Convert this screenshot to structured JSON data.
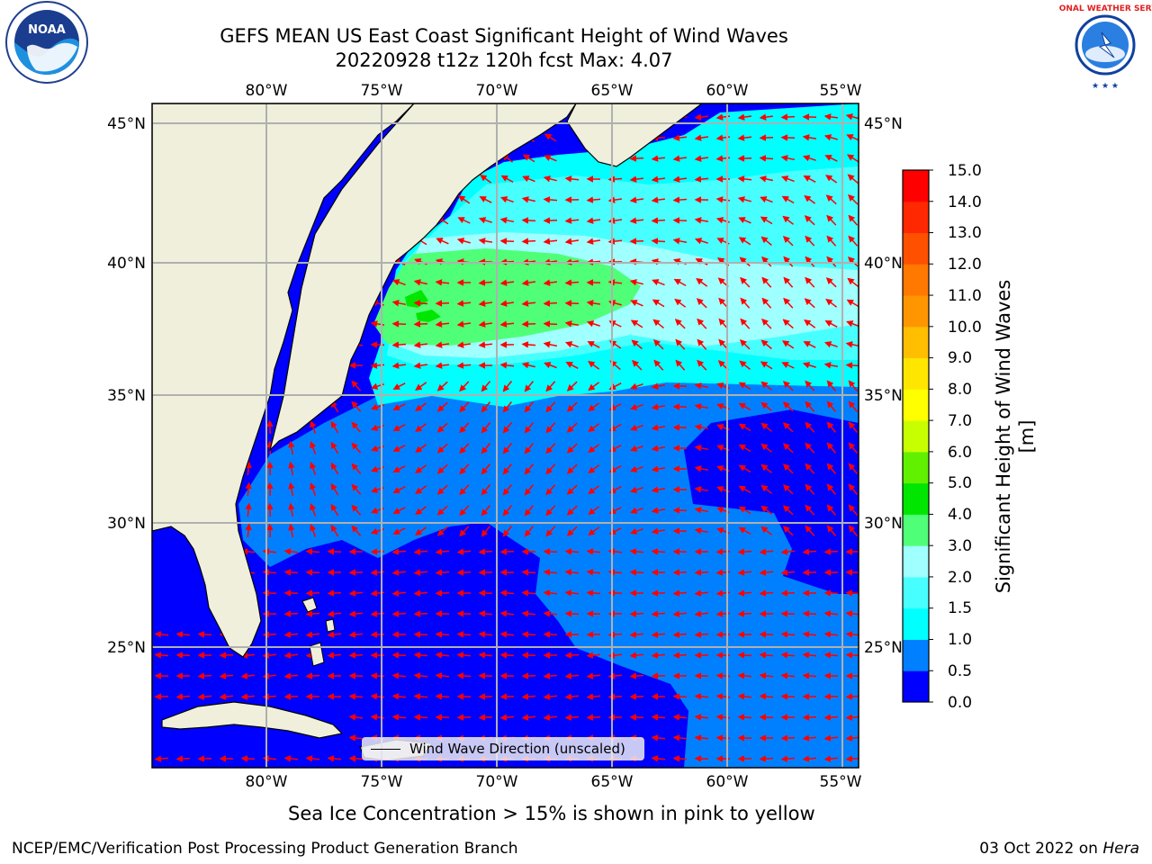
{
  "header": {
    "title_line1": "GEFS MEAN US East Coast Significant Height of Wind Waves",
    "title_line2": "20220928 t12z 120h fcst   Max: 4.07"
  },
  "logos": {
    "left": "noaa-logo",
    "left_text": "NOAA",
    "right": "national-weather-service-logo",
    "right_text": "NATIONAL WEATHER SERVICE"
  },
  "map": {
    "lon_ticks": [
      "80°W",
      "75°W",
      "70°W",
      "65°W",
      "60°W",
      "55°W"
    ],
    "lat_ticks": [
      "45°N",
      "40°N",
      "35°N",
      "30°N",
      "25°N"
    ],
    "lon_values": [
      -80,
      -75,
      -70,
      -65,
      -60,
      -55
    ],
    "lat_values": [
      45,
      40,
      35,
      30,
      25
    ],
    "colors": {
      "land": "#efefdc",
      "grid": "#b0b0b0",
      "arrow": "#ff0000"
    }
  },
  "colorbar": {
    "label": "Significant Height of Wind Waves [m]",
    "ticks": [
      "15.0",
      "14.0",
      "13.0",
      "12.0",
      "11.0",
      "10.0",
      "9.0",
      "8.0",
      "7.0",
      "6.0",
      "5.0",
      "4.0",
      "3.0",
      "2.0",
      "1.5",
      "1.0",
      "0.5",
      "0.0"
    ],
    "colors": [
      "#0000ff",
      "#0080ff",
      "#00ffff",
      "#48ffff",
      "#a0ffff",
      "#50ff78",
      "#00e600",
      "#60f000",
      "#c8ff00",
      "#ffff00",
      "#ffe600",
      "#ffbe00",
      "#ff9600",
      "#ff7800",
      "#ff5000",
      "#ff2800",
      "#ff0000"
    ]
  },
  "legend": {
    "label": "Wind Wave Direction (unscaled)"
  },
  "notes": {
    "sea_ice": "Sea Ice Concentration > 15% is shown in pink to yellow"
  },
  "footer": {
    "left": "NCEP/EMC/Verification Post Processing Product Generation Branch",
    "right_prefix": "03 Oct 2022 on ",
    "right_host": "Hera"
  }
}
